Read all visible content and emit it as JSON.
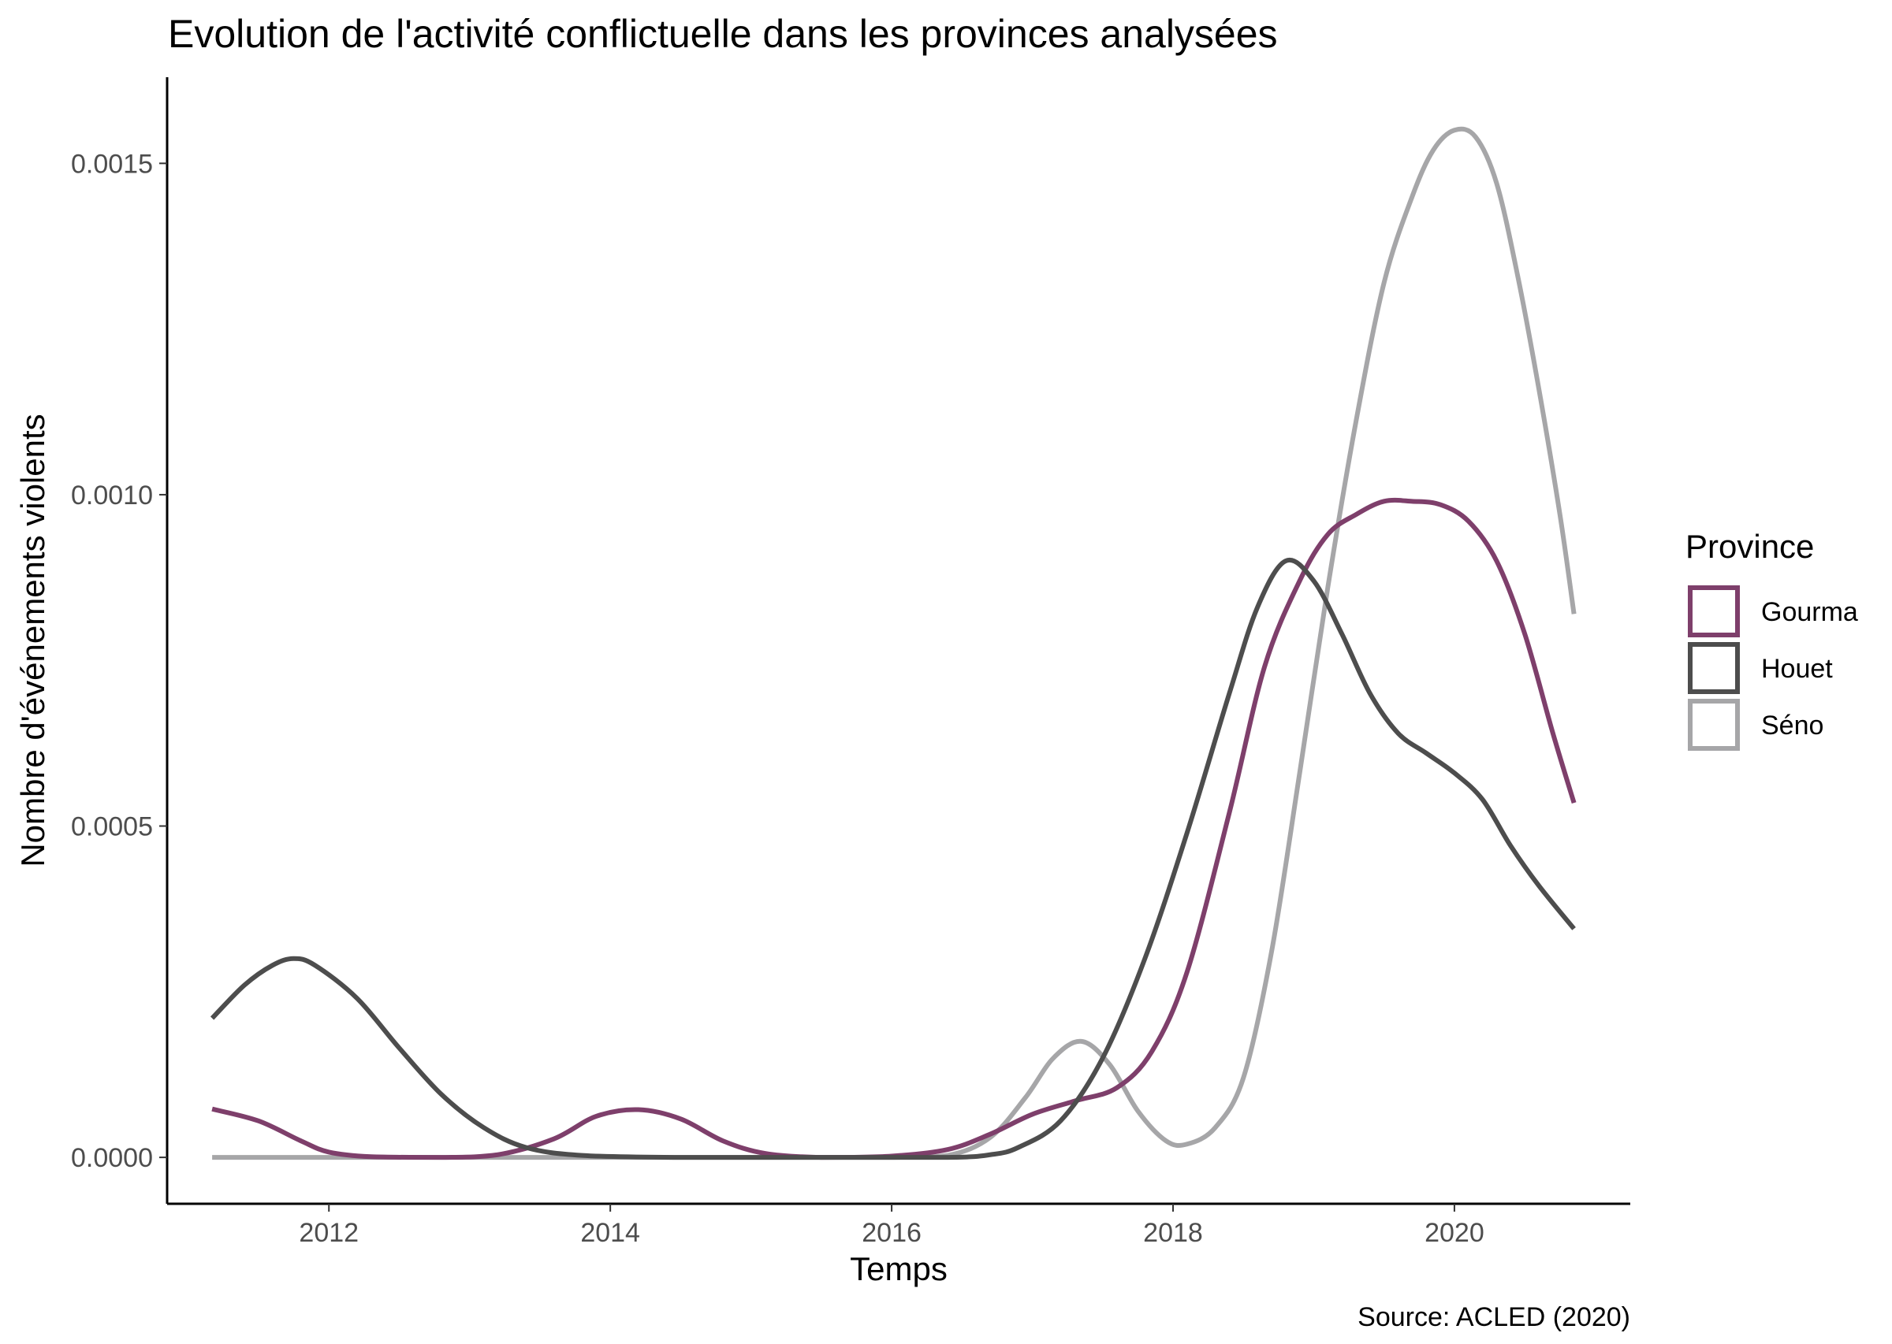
{
  "chart_data": {
    "type": "line",
    "title": "Evolution de l'activité conflictuelle dans les provinces analysées",
    "xlabel": "Temps",
    "ylabel": "Nombre d'événements violents",
    "caption": "Source: ACLED (2020)",
    "xlim": [
      2010.85,
      2021.25
    ],
    "ylim": [
      -7e-05,
      0.00163
    ],
    "x_ticks": [
      2012,
      2014,
      2016,
      2018,
      2020
    ],
    "x_tick_labels": [
      "2012",
      "2014",
      "2016",
      "2018",
      "2020"
    ],
    "y_ticks": [
      0,
      0.0005,
      0.001,
      0.0015
    ],
    "y_tick_labels": [
      "0.0000",
      "0.0005",
      "0.0010",
      "0.0015"
    ],
    "grid": false,
    "legend": {
      "title": "Province",
      "placement": "right"
    },
    "series": [
      {
        "name": "Gourma",
        "color": "#7e3f6b",
        "x": [
          2011.17,
          2011.5,
          2011.8,
          2012.0,
          2012.3,
          2012.8,
          2013.2,
          2013.6,
          2013.9,
          2014.2,
          2014.5,
          2014.8,
          2015.1,
          2015.5,
          2016.0,
          2016.4,
          2016.7,
          2017.0,
          2017.3,
          2017.6,
          2017.85,
          2018.1,
          2018.4,
          2018.65,
          2018.9,
          2019.1,
          2019.3,
          2019.5,
          2019.7,
          2019.9,
          2020.1,
          2020.3,
          2020.5,
          2020.7,
          2020.85
        ],
        "y": [
          7.3e-05,
          5.5e-05,
          2.5e-05,
          8e-06,
          1e-06,
          0.0,
          4e-06,
          2.8e-05,
          6.2e-05,
          7.2e-05,
          5.8e-05,
          2.5e-05,
          6e-06,
          0.0,
          2e-06,
          1.2e-05,
          3.5e-05,
          6.5e-05,
          8.5e-05,
          0.000105,
          0.00016,
          0.00028,
          0.00052,
          0.00074,
          0.00087,
          0.00094,
          0.00097,
          0.00099,
          0.00099,
          0.000985,
          0.00096,
          0.0009,
          0.00079,
          0.00064,
          0.000535
        ]
      },
      {
        "name": "Houet",
        "color": "#4d4d4d",
        "x": [
          2011.17,
          2011.4,
          2011.6,
          2011.75,
          2011.9,
          2012.2,
          2012.5,
          2012.8,
          2013.1,
          2013.4,
          2013.8,
          2014.5,
          2015.5,
          2016.4,
          2016.7,
          2016.9,
          2017.2,
          2017.5,
          2017.8,
          2018.1,
          2018.4,
          2018.6,
          2018.8,
          2019.0,
          2019.2,
          2019.4,
          2019.6,
          2019.8,
          2020.0,
          2020.2,
          2020.4,
          2020.6,
          2020.85
        ],
        "y": [
          0.00021,
          0.00026,
          0.00029,
          0.0003,
          0.00029,
          0.00024,
          0.000165,
          9.5e-05,
          4.5e-05,
          1.5e-05,
          3e-06,
          0.0,
          0.0,
          0.0,
          4e-06,
          1.5e-05,
          5.5e-05,
          0.00015,
          0.0003,
          0.00049,
          0.0007,
          0.00083,
          0.0009,
          0.00087,
          0.00079,
          0.0007,
          0.00064,
          0.00061,
          0.00058,
          0.00054,
          0.00047,
          0.00041,
          0.000345
        ]
      },
      {
        "name": "Séno",
        "color": "#a6a6a8",
        "x": [
          2011.17,
          2012.0,
          2013.0,
          2014.0,
          2015.0,
          2016.0,
          2016.4,
          2016.7,
          2016.95,
          2017.15,
          2017.35,
          2017.55,
          2017.75,
          2017.95,
          2018.1,
          2018.3,
          2018.5,
          2018.7,
          2018.9,
          2019.1,
          2019.3,
          2019.5,
          2019.7,
          2019.85,
          2020.0,
          2020.15,
          2020.3,
          2020.45,
          2020.6,
          2020.75,
          2020.85
        ],
        "y": [
          0.0,
          0.0,
          0.0,
          0.0,
          0.0,
          0.0,
          3e-06,
          3e-05,
          9e-05,
          0.00015,
          0.000175,
          0.00014,
          7e-05,
          2.5e-05,
          2e-05,
          4.5e-05,
          0.00012,
          0.00031,
          0.00058,
          0.00086,
          0.00111,
          0.00132,
          0.00145,
          0.00152,
          0.00155,
          0.00154,
          0.00147,
          0.00133,
          0.00116,
          0.00097,
          0.00082
        ]
      }
    ]
  }
}
